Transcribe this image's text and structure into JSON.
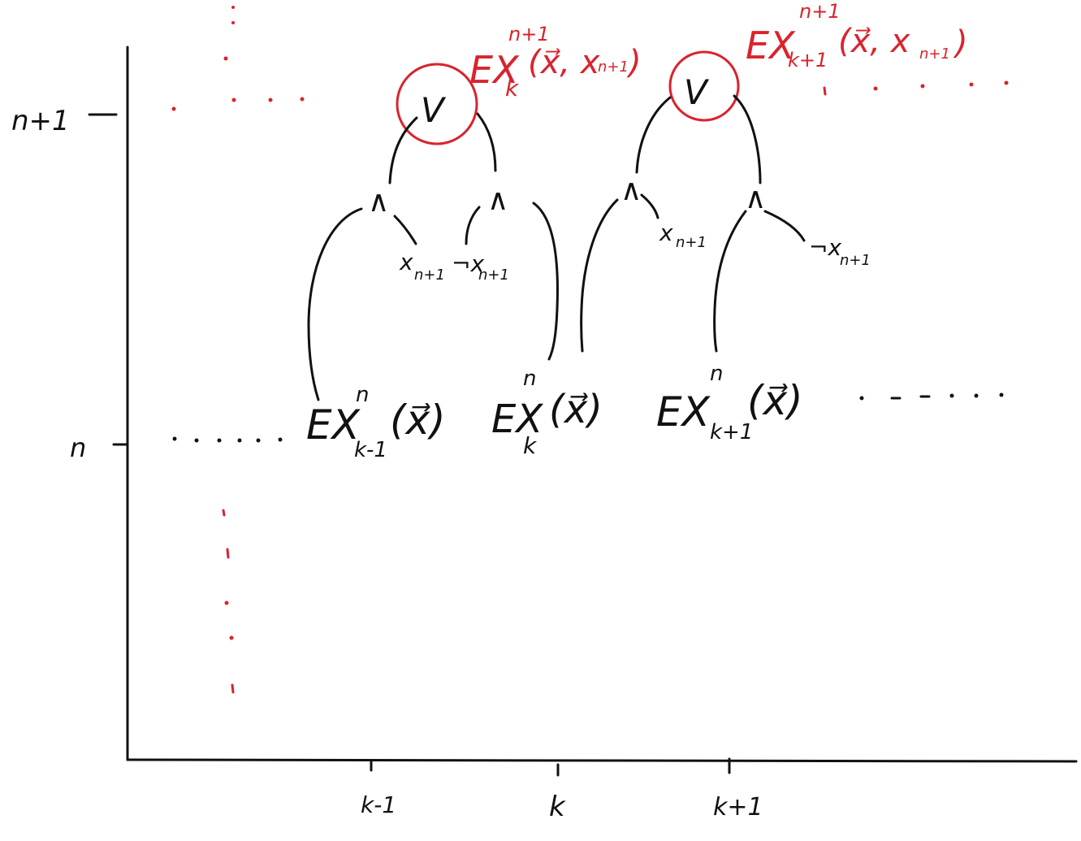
{
  "colors": {
    "ink": "#111111",
    "highlight": "#d9232e",
    "background": "#ffffff"
  },
  "axes": {
    "x_ticks": [
      "k-1",
      "k",
      "k+1"
    ],
    "y_ticks": [
      "n+1",
      "n"
    ]
  },
  "base_row": {
    "nodes": [
      {
        "base": "EX",
        "sup": "n",
        "sub": "k-1",
        "arg": "(x⃗)"
      },
      {
        "base": "EX",
        "sup": "n",
        "sub": "k",
        "arg": "(x⃗)"
      },
      {
        "base": "EX",
        "sup": "n",
        "sub": "k+1",
        "arg": "(x⃗)"
      }
    ]
  },
  "gates": {
    "or_symbol": "V",
    "and_symbol": "∧",
    "leaves_left": [
      "x",
      "¬x"
    ],
    "leaves_left_sub": [
      "n+1",
      "n+1"
    ],
    "leaves_right": [
      "x",
      "¬x"
    ],
    "leaves_right_sub": [
      "n+1",
      "n+1"
    ]
  },
  "top_labels": [
    {
      "base": "EX",
      "sup": "n+1",
      "sub": "k",
      "arg": "(x⃗, x",
      "arg_sub": "n+1",
      "close": ")"
    },
    {
      "base": "EX",
      "sup": "n+1",
      "sub": "k+1",
      "arg": "(x⃗, x",
      "arg_sub": "n+1",
      "close": ")"
    }
  ]
}
